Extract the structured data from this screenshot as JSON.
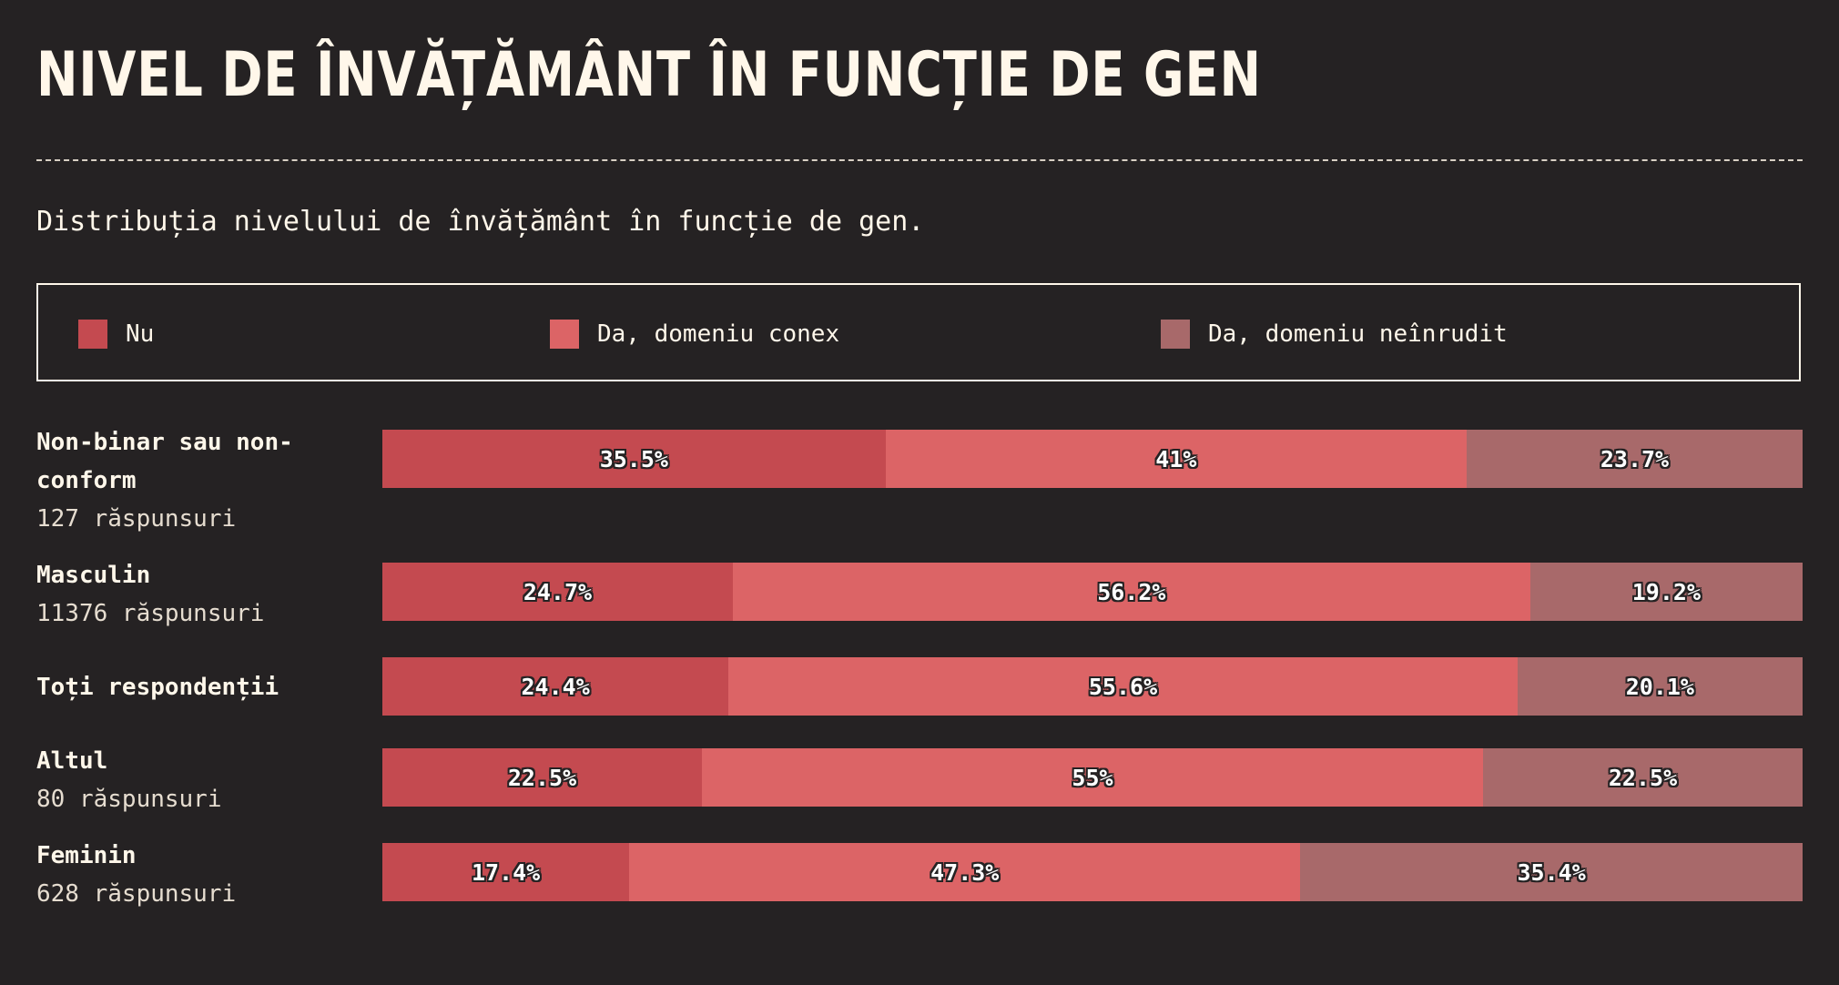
{
  "title": "NIVEL DE ÎNVĂȚĂMÂNT ÎN FUNCȚIE DE GEN",
  "subtitle": "Distribuția nivelului de învățământ în funcție de gen.",
  "colors": {
    "background": "#252223",
    "text": "#fff7ea",
    "series": [
      "#c44a50",
      "#dc6466",
      "#a8696a"
    ]
  },
  "legend": [
    {
      "label": "Nu",
      "color": "#c44a50"
    },
    {
      "label": "Da, domeniu conex",
      "color": "#dc6466"
    },
    {
      "label": "Da, domeniu neînrudit",
      "color": "#a8696a"
    }
  ],
  "rows": [
    {
      "name": "Non-binar sau non-conform",
      "count": "127 răspunsuri"
    },
    {
      "name": "Masculin",
      "count": "11376 răspunsuri"
    },
    {
      "name": "Toți respondenții",
      "count": ""
    },
    {
      "name": "Altul",
      "count": "80 răspunsuri"
    },
    {
      "name": "Feminin",
      "count": "628 răspunsuri"
    }
  ],
  "chart_data": {
    "type": "bar",
    "orientation": "horizontal",
    "stacked": true,
    "normalized_percent": true,
    "title": "NIVEL DE ÎNVĂȚĂMÂNT ÎN FUNCȚIE DE GEN",
    "subtitle": "Distribuția nivelului de învățământ în funcție de gen.",
    "categories": [
      "Non-binar sau non-conform",
      "Masculin",
      "Toți respondenții",
      "Altul",
      "Feminin"
    ],
    "series": [
      {
        "name": "Nu",
        "values": [
          35.5,
          24.7,
          24.4,
          22.5,
          17.4
        ],
        "labels": [
          "35.5%",
          "24.7%",
          "24.4%",
          "22.5%",
          "17.4%"
        ]
      },
      {
        "name": "Da, domeniu conex",
        "values": [
          41,
          56.2,
          55.6,
          55,
          47.3
        ],
        "labels": [
          "41%",
          "56.2%",
          "55.6%",
          "55%",
          "47.3%"
        ]
      },
      {
        "name": "Da, domeniu neînrudit",
        "values": [
          23.7,
          19.2,
          20.1,
          22.5,
          35.4
        ],
        "labels": [
          "23.7%",
          "19.2%",
          "20.1%",
          "22.5%",
          "35.4%"
        ]
      }
    ],
    "legend_position": "top",
    "grid": false
  }
}
